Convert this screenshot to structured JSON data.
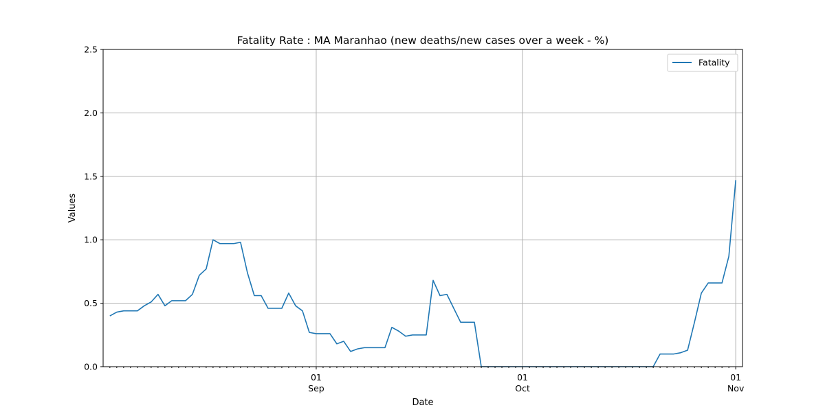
{
  "chart_data": {
    "type": "line",
    "title": "Fatality Rate : MA Maranhao (new deaths/new cases over a week - %)",
    "xlabel": "Date",
    "ylabel": "Values",
    "ylim": [
      0,
      2.5
    ],
    "yticks": [
      0.0,
      0.5,
      1.0,
      1.5,
      2.0,
      2.5
    ],
    "ytick_labels": [
      "0.0",
      "0.5",
      "1.0",
      "1.5",
      "2.0",
      "2.5"
    ],
    "xlim": [
      "2020-08-02",
      "2020-11-01"
    ],
    "xticks": [
      {
        "date": "2020-09-01",
        "day": "01",
        "month": "Sep"
      },
      {
        "date": "2020-10-01",
        "day": "01",
        "month": "Oct"
      },
      {
        "date": "2020-11-01",
        "day": "01",
        "month": "Nov"
      }
    ],
    "minor_ticks": "daily",
    "grid": true,
    "legend": "top-right",
    "series": [
      {
        "name": "Fatality",
        "color": "#1f77b4",
        "x": [
          "2020-08-02",
          "2020-08-03",
          "2020-08-04",
          "2020-08-05",
          "2020-08-06",
          "2020-08-07",
          "2020-08-08",
          "2020-08-09",
          "2020-08-10",
          "2020-08-11",
          "2020-08-12",
          "2020-08-13",
          "2020-08-14",
          "2020-08-15",
          "2020-08-16",
          "2020-08-17",
          "2020-08-18",
          "2020-08-19",
          "2020-08-20",
          "2020-08-21",
          "2020-08-22",
          "2020-08-23",
          "2020-08-24",
          "2020-08-25",
          "2020-08-26",
          "2020-08-27",
          "2020-08-28",
          "2020-08-29",
          "2020-08-30",
          "2020-08-31",
          "2020-09-01",
          "2020-09-02",
          "2020-09-03",
          "2020-09-04",
          "2020-09-05",
          "2020-09-06",
          "2020-09-07",
          "2020-09-08",
          "2020-09-09",
          "2020-09-10",
          "2020-09-11",
          "2020-09-12",
          "2020-09-13",
          "2020-09-14",
          "2020-09-15",
          "2020-09-16",
          "2020-09-17",
          "2020-09-18",
          "2020-09-19",
          "2020-09-20",
          "2020-09-21",
          "2020-09-22",
          "2020-09-23",
          "2020-09-24",
          "2020-09-25",
          "2020-09-26",
          "2020-09-27",
          "2020-09-28",
          "2020-09-29",
          "2020-09-30",
          "2020-10-01",
          "2020-10-02",
          "2020-10-03",
          "2020-10-04",
          "2020-10-05",
          "2020-10-06",
          "2020-10-07",
          "2020-10-08",
          "2020-10-09",
          "2020-10-10",
          "2020-10-11",
          "2020-10-12",
          "2020-10-13",
          "2020-10-14",
          "2020-10-15",
          "2020-10-16",
          "2020-10-17",
          "2020-10-18",
          "2020-10-19",
          "2020-10-20",
          "2020-10-21",
          "2020-10-22",
          "2020-10-23",
          "2020-10-24",
          "2020-10-25",
          "2020-10-26",
          "2020-10-27",
          "2020-10-28",
          "2020-10-29",
          "2020-10-30",
          "2020-10-31",
          "2020-11-01"
        ],
        "values": [
          0.4,
          0.43,
          0.44,
          0.44,
          0.44,
          0.48,
          0.51,
          0.57,
          0.48,
          0.52,
          0.52,
          0.52,
          0.57,
          0.72,
          0.77,
          1.0,
          0.97,
          0.97,
          0.97,
          0.98,
          0.74,
          0.56,
          0.56,
          0.46,
          0.46,
          0.46,
          0.58,
          0.48,
          0.44,
          0.27,
          0.26,
          0.26,
          0.26,
          0.18,
          0.2,
          0.12,
          0.14,
          0.15,
          0.15,
          0.15,
          0.15,
          0.31,
          0.28,
          0.24,
          0.25,
          0.25,
          0.25,
          0.68,
          0.56,
          0.57,
          0.46,
          0.35,
          0.35,
          0.35,
          0.0,
          0.0,
          0.0,
          0.0,
          0.0,
          0.0,
          0.0,
          0.0,
          0.0,
          0.0,
          0.0,
          0.0,
          0.0,
          0.0,
          0.0,
          0.0,
          0.0,
          0.0,
          0.0,
          0.0,
          0.0,
          0.0,
          0.0,
          0.0,
          0.0,
          0.0,
          0.1,
          0.1,
          0.1,
          0.11,
          0.13,
          0.35,
          0.58,
          0.66,
          0.66,
          0.66,
          0.87,
          1.47
        ]
      }
    ]
  }
}
